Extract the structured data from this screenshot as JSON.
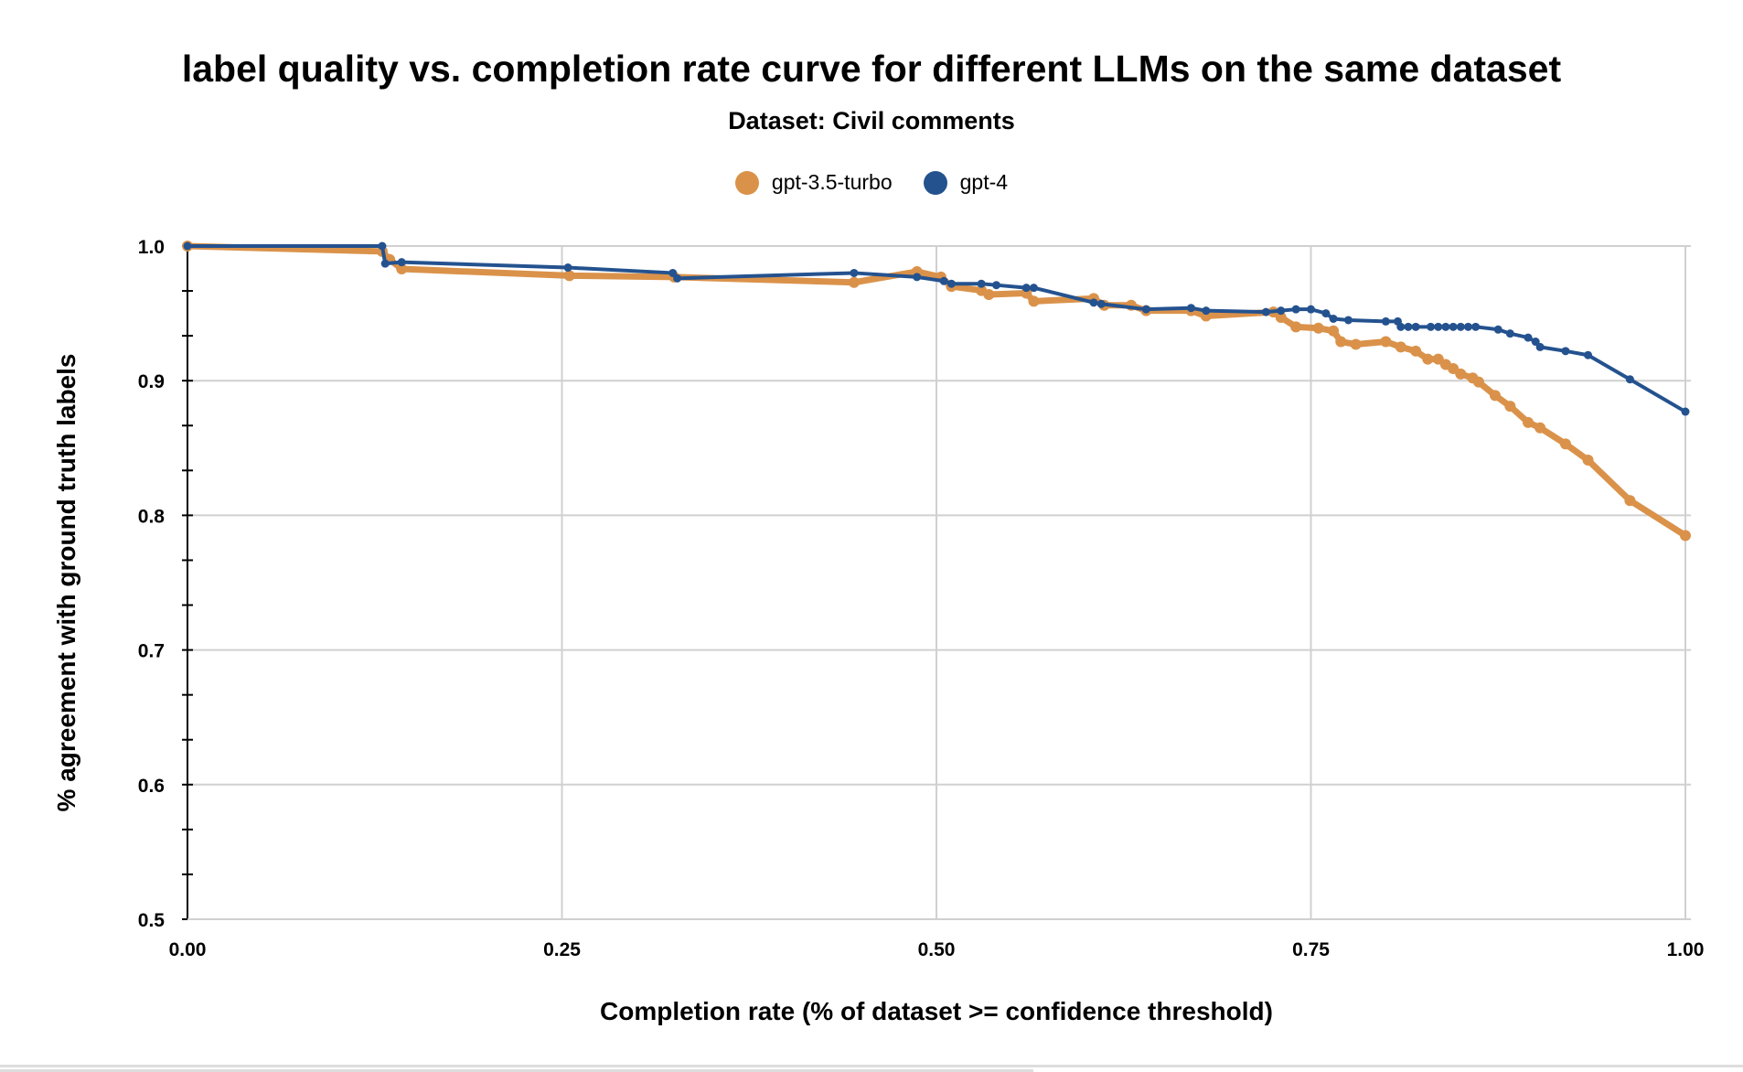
{
  "chart_data": {
    "type": "line",
    "title": "label quality vs. completion rate curve for different LLMs on the same dataset",
    "subtitle": "Dataset: Civil comments",
    "xlabel": "Completion rate (% of dataset >= confidence threshold)",
    "ylabel": "% agreement with ground truth labels",
    "xlim": [
      0,
      1
    ],
    "ylim": [
      0.5,
      1.0
    ],
    "xticks": [
      "0.00",
      "0.25",
      "0.50",
      "0.75",
      "1.00"
    ],
    "yticks": [
      "0.5",
      "0.6",
      "0.7",
      "0.8",
      "0.9",
      "1.0"
    ],
    "grid": true,
    "legend_position": "top",
    "series": [
      {
        "name": "gpt-3.5-turbo",
        "color": "#DA924A",
        "x": [
          0,
          0.13,
          0.135,
          0.143,
          0.255,
          0.325,
          0.445,
          0.487,
          0.503,
          0.51,
          0.53,
          0.535,
          0.56,
          0.565,
          0.605,
          0.612,
          0.63,
          0.64,
          0.67,
          0.68,
          0.725,
          0.73,
          0.74,
          0.755,
          0.765,
          0.77,
          0.78,
          0.8,
          0.81,
          0.82,
          0.828,
          0.835,
          0.84,
          0.845,
          0.85,
          0.858,
          0.862,
          0.873,
          0.883,
          0.895,
          0.903,
          0.92,
          0.935,
          0.963,
          1.0
        ],
        "y": [
          1.0,
          0.996,
          0.99,
          0.983,
          0.978,
          0.977,
          0.973,
          0.981,
          0.977,
          0.97,
          0.967,
          0.964,
          0.965,
          0.959,
          0.961,
          0.956,
          0.956,
          0.952,
          0.952,
          0.948,
          0.951,
          0.947,
          0.94,
          0.939,
          0.937,
          0.929,
          0.927,
          0.929,
          0.925,
          0.922,
          0.916,
          0.916,
          0.912,
          0.909,
          0.905,
          0.902,
          0.899,
          0.889,
          0.881,
          0.869,
          0.865,
          0.853,
          0.841,
          0.811,
          0.785
        ]
      },
      {
        "name": "gpt-4",
        "color": "#24528F",
        "x": [
          0,
          0.13,
          0.132,
          0.143,
          0.254,
          0.324,
          0.327,
          0.445,
          0.487,
          0.505,
          0.51,
          0.53,
          0.54,
          0.56,
          0.565,
          0.605,
          0.61,
          0.64,
          0.67,
          0.68,
          0.72,
          0.73,
          0.74,
          0.75,
          0.76,
          0.765,
          0.775,
          0.8,
          0.808,
          0.81,
          0.815,
          0.82,
          0.83,
          0.835,
          0.84,
          0.845,
          0.85,
          0.855,
          0.86,
          0.875,
          0.883,
          0.895,
          0.9,
          0.903,
          0.92,
          0.935,
          0.963,
          1.0
        ],
        "y": [
          1.0,
          1.0,
          0.987,
          0.988,
          0.984,
          0.98,
          0.976,
          0.98,
          0.977,
          0.974,
          0.972,
          0.972,
          0.971,
          0.969,
          0.969,
          0.958,
          0.957,
          0.953,
          0.954,
          0.952,
          0.951,
          0.952,
          0.953,
          0.953,
          0.95,
          0.946,
          0.945,
          0.944,
          0.944,
          0.94,
          0.94,
          0.94,
          0.94,
          0.94,
          0.94,
          0.94,
          0.94,
          0.94,
          0.94,
          0.938,
          0.935,
          0.932,
          0.929,
          0.925,
          0.922,
          0.919,
          0.901,
          0.877
        ]
      }
    ]
  }
}
